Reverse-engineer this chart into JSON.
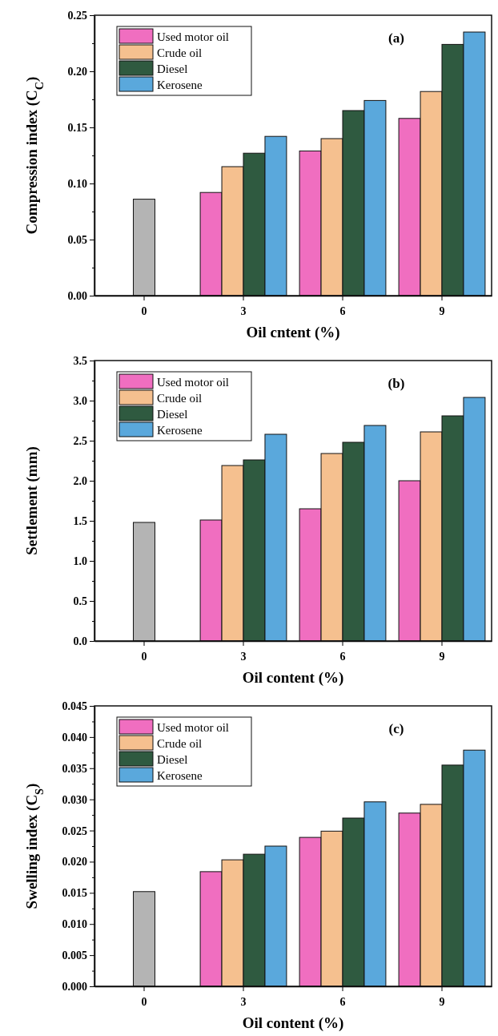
{
  "chart_data": [
    {
      "type": "bar",
      "categories": [
        "0",
        "3",
        "6",
        "9"
      ],
      "xlabel": "Oil cntent (%)",
      "ylabel": "Compression index (C$_{C}$)",
      "ylim": [
        0,
        0.25
      ],
      "yticks": [
        {
          "value": 0,
          "label": "0.00"
        },
        {
          "value": 0.025,
          "label": null
        },
        {
          "value": 0.05,
          "label": "0.05"
        },
        {
          "value": 0.075,
          "label": null
        },
        {
          "value": 0.1,
          "label": "0.10"
        },
        {
          "value": 0.125,
          "label": null
        },
        {
          "value": 0.15,
          "label": "0.15"
        },
        {
          "value": 0.175,
          "label": null
        },
        {
          "value": 0.2,
          "label": "0.20"
        },
        {
          "value": 0.225,
          "label": null
        },
        {
          "value": 0.25,
          "label": "0.25"
        }
      ],
      "legend": "top left",
      "grid": false,
      "annotations": [
        "(a)"
      ],
      "series": [
        {
          "color": "#b4b4b4",
          "values": [
            0.086,
            null,
            null,
            null
          ]
        },
        {
          "name": "Used motor oil",
          "color": "#f06ec0",
          "values": [
            null,
            0.092,
            0.129,
            0.158
          ]
        },
        {
          "name": "Crude oil",
          "color": "#f5c08f",
          "values": [
            null,
            0.115,
            0.14,
            0.182
          ]
        },
        {
          "name": "Diesel",
          "color": "#2f5a40",
          "values": [
            null,
            0.127,
            0.165,
            0.224
          ]
        },
        {
          "name": "Kerosene",
          "color": "#5aa8dc",
          "values": [
            null,
            0.142,
            0.174,
            0.235
          ]
        }
      ]
    },
    {
      "type": "bar",
      "categories": [
        "0",
        "3",
        "6",
        "9"
      ],
      "xlabel": "Oil content (%)",
      "ylabel": "Settlement (mm)",
      "ylim": [
        0,
        3.5
      ],
      "yticks": [
        {
          "value": 0,
          "label": "0.0"
        },
        {
          "value": 0.25,
          "label": null
        },
        {
          "value": 0.5,
          "label": "0.5"
        },
        {
          "value": 0.75,
          "label": null
        },
        {
          "value": 1,
          "label": "1.0"
        },
        {
          "value": 1.25,
          "label": null
        },
        {
          "value": 1.5,
          "label": "1.5"
        },
        {
          "value": 1.75,
          "label": null
        },
        {
          "value": 2,
          "label": "2.0"
        },
        {
          "value": 2.25,
          "label": null
        },
        {
          "value": 2.5,
          "label": "2.5"
        },
        {
          "value": 2.75,
          "label": null
        },
        {
          "value": 3,
          "label": "3.0"
        },
        {
          "value": 3.25,
          "label": null
        },
        {
          "value": 3.5,
          "label": "3.5"
        }
      ],
      "legend": "top left",
      "grid": false,
      "annotations": [
        "(b)"
      ],
      "series": [
        {
          "color": "#b4b4b4",
          "values": [
            1.48,
            null,
            null,
            null
          ]
        },
        {
          "name": "Used motor oil",
          "color": "#f06ec0",
          "values": [
            null,
            1.51,
            1.65,
            2.0
          ]
        },
        {
          "name": "Crude oil",
          "color": "#f5c08f",
          "values": [
            null,
            2.19,
            2.34,
            2.61
          ]
        },
        {
          "name": "Diesel",
          "color": "#2f5a40",
          "values": [
            null,
            2.26,
            2.48,
            2.81
          ]
        },
        {
          "name": "Kerosene",
          "color": "#5aa8dc",
          "values": [
            null,
            2.58,
            2.69,
            3.04
          ]
        }
      ]
    },
    {
      "type": "bar",
      "categories": [
        "0",
        "3",
        "6",
        "9"
      ],
      "xlabel": "Oil content (%)",
      "ylabel": "Swelling index (C$_{S}$)",
      "ylim": [
        0,
        0.045
      ],
      "yticks": [
        {
          "value": 0,
          "label": "0.000"
        },
        {
          "value": 0.0025,
          "label": null
        },
        {
          "value": 0.005,
          "label": "0.005"
        },
        {
          "value": 0.0075,
          "label": null
        },
        {
          "value": 0.01,
          "label": "0.010"
        },
        {
          "value": 0.0125,
          "label": null
        },
        {
          "value": 0.015,
          "label": "0.015"
        },
        {
          "value": 0.0175,
          "label": null
        },
        {
          "value": 0.02,
          "label": "0.020"
        },
        {
          "value": 0.0225,
          "label": null
        },
        {
          "value": 0.025,
          "label": "0.025"
        },
        {
          "value": 0.0275,
          "label": null
        },
        {
          "value": 0.03,
          "label": "0.030"
        },
        {
          "value": 0.0325,
          "label": null
        },
        {
          "value": 0.035,
          "label": "0.035"
        },
        {
          "value": 0.0375,
          "label": null
        },
        {
          "value": 0.04,
          "label": "0.040"
        },
        {
          "value": 0.0425,
          "label": null
        },
        {
          "value": 0.045,
          "label": "0.045"
        }
      ],
      "legend": "top left",
      "grid": false,
      "annotations": [
        "(c)"
      ],
      "series": [
        {
          "color": "#b4b4b4",
          "values": [
            0.0152,
            null,
            null,
            null
          ]
        },
        {
          "name": "Used motor oil",
          "color": "#f06ec0",
          "values": [
            null,
            0.0184,
            0.0239,
            0.0278
          ]
        },
        {
          "name": "Crude oil",
          "color": "#f5c08f",
          "values": [
            null,
            0.0203,
            0.0249,
            0.0292
          ]
        },
        {
          "name": "Diesel",
          "color": "#2f5a40",
          "values": [
            null,
            0.0212,
            0.027,
            0.0355
          ]
        },
        {
          "name": "Kerosene",
          "color": "#5aa8dc",
          "values": [
            null,
            0.0225,
            0.0296,
            0.0379
          ]
        }
      ]
    }
  ]
}
